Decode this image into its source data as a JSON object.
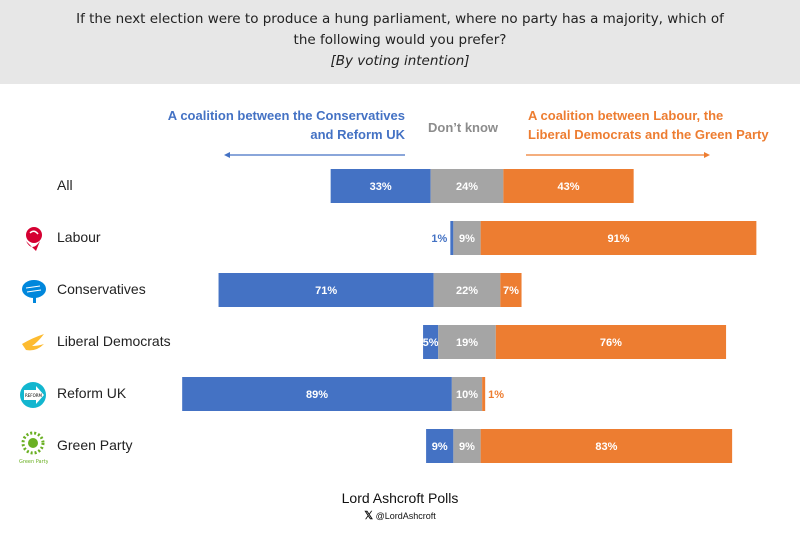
{
  "header": {
    "question": "If the next election were to produce a hung parliament, where no party has a majority, which of the following would you prefer?",
    "subtitle": "[By voting intention]"
  },
  "chart_data": {
    "type": "bar",
    "orientation": "horizontal-stacked-diverging",
    "categories": [
      "All",
      "Labour",
      "Conservatives",
      "Liberal Democrats",
      "Reform UK",
      "Green Party"
    ],
    "series": [
      {
        "name": "A coalition between the Conservatives and Reform UK",
        "color": "#4472c4",
        "values": [
          33,
          1,
          71,
          5,
          89,
          9
        ]
      },
      {
        "name": "Don't know",
        "color": "#a5a5a5",
        "values": [
          24,
          9,
          22,
          19,
          10,
          9
        ]
      },
      {
        "name": "A coalition between Labour, the Liberal Democrats and the Green Party",
        "color": "#ed7d31",
        "values": [
          43,
          91,
          7,
          76,
          1,
          83
        ]
      }
    ],
    "legend": {
      "left": "A coalition between the Conservatives and Reform UK",
      "left_line1": "A coalition between the Conservatives",
      "left_line2": "and Reform UK",
      "middle": "Don’t know",
      "right_line1": "A coalition between Labour, the",
      "right_line2": "Liberal Democrats and the Green Party"
    },
    "unit": "%"
  },
  "logos": [
    "labour-rose",
    "conservative-tree",
    "libdem-bird",
    "reform-uk-arrow",
    "green-party-logo"
  ],
  "logo_text": {
    "reform": "REFORM UK",
    "green": "Green Party"
  },
  "footer": {
    "brand": "Lord Ashcroft Polls",
    "handle": "@LordAshcroft"
  }
}
